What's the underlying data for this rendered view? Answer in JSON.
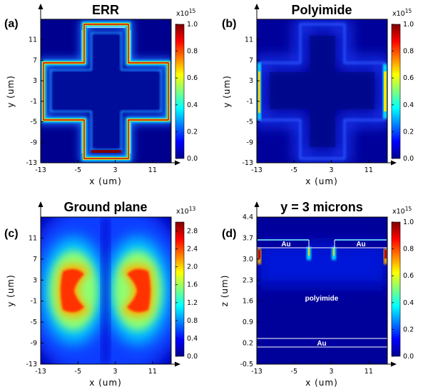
{
  "chart_data": [
    {
      "type": "heatmap",
      "panel_label": "(a)",
      "title": "ERR",
      "xlabel": "x  (um)",
      "ylabel": "y  (um)",
      "x_ticks": [
        "-13",
        "-5",
        "3",
        "11"
      ],
      "y_ticks": [
        "11",
        "7",
        "3",
        "-1",
        "-5",
        "-9",
        "-13"
      ],
      "xlim": [
        -13,
        15
      ],
      "ylim": [
        -13,
        15
      ],
      "colorbar": {
        "exponent": "x10",
        "exponent_power": "15",
        "ticks": [
          "1.0",
          "0.8",
          "0.6",
          "0.4",
          "0.2",
          "0.0"
        ],
        "range": [
          0,
          1.0
        ]
      }
    },
    {
      "type": "heatmap",
      "panel_label": "(b)",
      "title": "Polyimide",
      "xlabel": "x  (um)",
      "ylabel": "y  (um)",
      "x_ticks": [
        "-13",
        "-5",
        "3",
        "11"
      ],
      "y_ticks": [
        "11",
        "7",
        "3",
        "-1",
        "-5",
        "-9",
        "-13"
      ],
      "xlim": [
        -13,
        15
      ],
      "ylim": [
        -13,
        15
      ],
      "colorbar": {
        "exponent": "x10",
        "exponent_power": "15",
        "ticks": [
          "1.0",
          "0.8",
          "0.6",
          "0.4",
          "0.2",
          "0.0"
        ],
        "range": [
          0,
          1.0
        ]
      }
    },
    {
      "type": "heatmap",
      "panel_label": "(c)",
      "title": "Ground plane",
      "xlabel": "x  (um)",
      "ylabel": "y  (um)",
      "x_ticks": [
        "-13",
        "-5",
        "3",
        "11"
      ],
      "y_ticks": [
        "11",
        "7",
        "3",
        "-1",
        "-5",
        "-9",
        "-13"
      ],
      "xlim": [
        -13,
        15
      ],
      "ylim": [
        -13,
        15
      ],
      "colorbar": {
        "exponent": "x10",
        "exponent_power": "13",
        "ticks": [
          "2.8",
          "2.4",
          "2.0",
          "1.6",
          "1.2",
          "0.8",
          "0.4",
          "0.0"
        ],
        "range": [
          0,
          3.0
        ]
      }
    },
    {
      "type": "heatmap",
      "panel_label": "(d)",
      "title": "y = 3 microns",
      "xlabel": "x  (um)",
      "ylabel": "z  (um)",
      "x_ticks": [
        "-13",
        "-5",
        "3",
        "11"
      ],
      "y_ticks": [
        "4.4",
        "3.7",
        "3.0",
        "2.3",
        "1.6",
        "0.9",
        "0.2",
        "-0.5"
      ],
      "xlim": [
        -13,
        15
      ],
      "ylim": [
        -0.5,
        4.4
      ],
      "annotations": [
        "Au",
        "Au",
        "polyimide",
        "Au"
      ],
      "colorbar": {
        "exponent": "x10",
        "exponent_power": "15",
        "ticks": [
          "1.0",
          "0.8",
          "0.6",
          "0.4",
          "0.2",
          "0.0"
        ],
        "range": [
          0,
          1.0
        ]
      }
    }
  ]
}
